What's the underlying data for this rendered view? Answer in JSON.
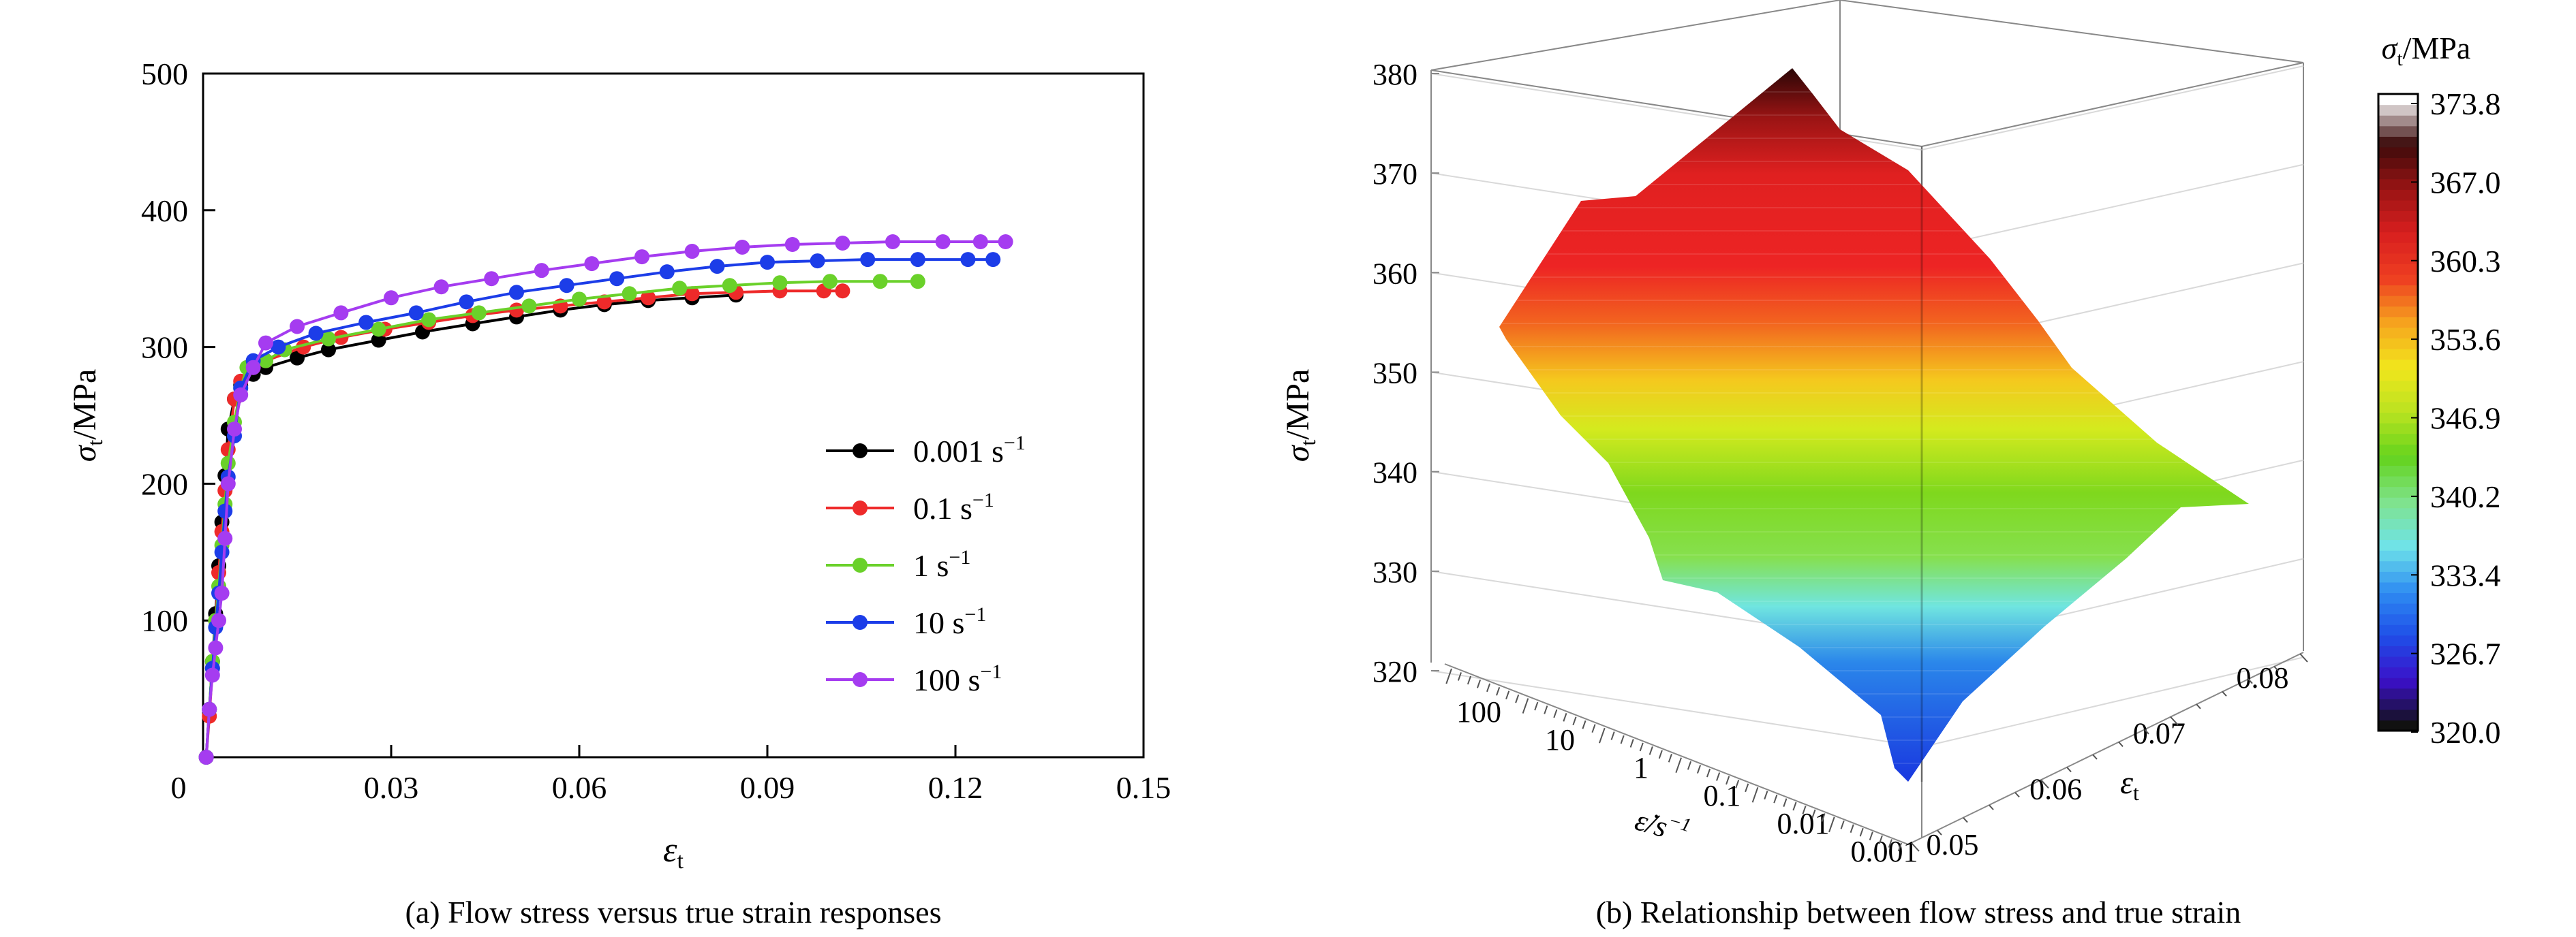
{
  "colors": {
    "series": [
      "#000000",
      "#ee2a2a",
      "#6ad12a",
      "#1c3de8",
      "#a53cf0"
    ]
  },
  "chart_data": [
    {
      "type": "line",
      "caption": "(a) Flow stress versus true strain responses",
      "xlabel_main": "ε",
      "xlabel_sub": "t",
      "ylabel_main": "σ",
      "ylabel_sub": "t",
      "ylabel_unit": "/MPa",
      "xlim": [
        0,
        0.15
      ],
      "ylim": [
        0,
        500
      ],
      "xticks": [
        {
          "v": 0,
          "label": "0"
        },
        {
          "v": 0.03,
          "label": "0.03"
        },
        {
          "v": 0.06,
          "label": "0.06"
        },
        {
          "v": 0.09,
          "label": "0.09"
        },
        {
          "v": 0.12,
          "label": "0.12"
        },
        {
          "v": 0.15,
          "label": "0.15"
        }
      ],
      "yticks": [
        {
          "v": 100,
          "label": "100"
        },
        {
          "v": 200,
          "label": "200"
        },
        {
          "v": 300,
          "label": "300"
        },
        {
          "v": 400,
          "label": "400"
        },
        {
          "v": 500,
          "label": "500"
        }
      ],
      "legend_position": "right",
      "series": [
        {
          "name": "0.001 s",
          "unit_sup": "−1",
          "x": [
            0.0005,
            0.001,
            0.0015,
            0.002,
            0.0025,
            0.003,
            0.0035,
            0.004,
            0.005,
            0.006,
            0.008,
            0.01,
            0.015,
            0.02,
            0.028,
            0.035,
            0.043,
            0.05,
            0.057,
            0.064,
            0.071,
            0.078,
            0.085
          ],
          "y": [
            0,
            35,
            70,
            105,
            140,
            172,
            206,
            240,
            262,
            272,
            280,
            285,
            292,
            298,
            305,
            311,
            317,
            322,
            327,
            331,
            334,
            336,
            338
          ]
        },
        {
          "name": "0.1 s",
          "unit_sup": "−1",
          "x": [
            0.0005,
            0.001,
            0.0015,
            0.002,
            0.0025,
            0.003,
            0.0035,
            0.004,
            0.005,
            0.006,
            0.008,
            0.01,
            0.016,
            0.022,
            0.029,
            0.036,
            0.043,
            0.05,
            0.057,
            0.064,
            0.071,
            0.078,
            0.085,
            0.092,
            0.099,
            0.102
          ],
          "y": [
            0,
            30,
            65,
            100,
            135,
            165,
            195,
            225,
            262,
            275,
            285,
            290,
            300,
            307,
            313,
            318,
            323,
            327,
            330,
            333,
            336,
            339,
            340,
            341,
            341,
            341
          ]
        },
        {
          "name": "1 s",
          "unit_sup": "−1",
          "x": [
            0.0005,
            0.001,
            0.0015,
            0.002,
            0.0025,
            0.003,
            0.0035,
            0.004,
            0.005,
            0.006,
            0.007,
            0.01,
            0.013,
            0.02,
            0.028,
            0.036,
            0.044,
            0.052,
            0.06,
            0.068,
            0.076,
            0.084,
            0.092,
            0.1,
            0.108,
            0.114
          ],
          "y": [
            0,
            35,
            70,
            100,
            125,
            155,
            185,
            215,
            245,
            270,
            285,
            290,
            298,
            306,
            313,
            320,
            325,
            330,
            335,
            339,
            343,
            345,
            347,
            348,
            348,
            348
          ]
        },
        {
          "name": "10 s",
          "unit_sup": "−1",
          "x": [
            0.0005,
            0.001,
            0.0015,
            0.002,
            0.0025,
            0.003,
            0.0035,
            0.004,
            0.005,
            0.006,
            0.008,
            0.012,
            0.018,
            0.026,
            0.034,
            0.042,
            0.05,
            0.058,
            0.066,
            0.074,
            0.082,
            0.09,
            0.098,
            0.106,
            0.114,
            0.122,
            0.126
          ],
          "y": [
            0,
            35,
            65,
            95,
            120,
            150,
            180,
            205,
            235,
            270,
            290,
            300,
            310,
            318,
            325,
            333,
            340,
            345,
            350,
            355,
            359,
            362,
            363,
            364,
            364,
            364,
            364
          ]
        },
        {
          "name": "100 s",
          "unit_sup": "−1",
          "x": [
            0.0005,
            0.001,
            0.0015,
            0.002,
            0.0025,
            0.003,
            0.0035,
            0.004,
            0.005,
            0.006,
            0.008,
            0.01,
            0.015,
            0.022,
            0.03,
            0.038,
            0.046,
            0.054,
            0.062,
            0.07,
            0.078,
            0.086,
            0.094,
            0.102,
            0.11,
            0.118,
            0.124,
            0.128
          ],
          "y": [
            0,
            35,
            60,
            80,
            100,
            120,
            160,
            200,
            240,
            265,
            285,
            303,
            315,
            325,
            336,
            344,
            350,
            356,
            361,
            366,
            370,
            373,
            375,
            376,
            377,
            377,
            377,
            377
          ]
        }
      ]
    },
    {
      "type": "surface",
      "caption": "(b) Relationship between flow stress and true strain",
      "zlabel_main": "σ",
      "zlabel_sub": "t",
      "zlabel_unit": "/MPa",
      "strain_rate_label": "ε̇/s",
      "strain_rate_sup": "−1",
      "strain_label_main": "ε",
      "strain_label_sub": "t",
      "zlim": [
        320,
        380
      ],
      "zticks": [
        "320",
        "330",
        "340",
        "350",
        "360",
        "370",
        "380"
      ],
      "strain_rate_ticks": [
        "100",
        "10",
        "1",
        "0.1",
        "0.01",
        "0.001"
      ],
      "strain_ticks": [
        "0.05",
        "0.06",
        "0.07",
        "0.08"
      ],
      "colorbar": {
        "title_main": "σ",
        "title_sub": "t",
        "title_unit": "/MPa",
        "range": [
          320.0,
          373.8
        ],
        "ticks": [
          "373.8",
          "367.0",
          "360.3",
          "353.6",
          "346.9",
          "340.2",
          "333.4",
          "326.7",
          "320.0"
        ],
        "colormap": [
          "#111111",
          "#3b10c8",
          "#1f4ee8",
          "#2e8df2",
          "#6fe3e9",
          "#7fe38c",
          "#64d31d",
          "#b9e320",
          "#f1e61c",
          "#f6a41e",
          "#ee3e21",
          "#d81f1f",
          "#9a1414",
          "#3b0a0a",
          "#ffffff"
        ]
      },
      "corners": [
        {
          "strain_rate": "100",
          "strain": "0.05",
          "stress": 354.6
        },
        {
          "strain_rate": "100",
          "strain": "0.08",
          "stress": 380.0
        },
        {
          "strain_rate": "0.001",
          "strain": "0.05",
          "stress": 320.0
        },
        {
          "strain_rate": "0.001",
          "strain": "0.08",
          "stress": 338.0
        }
      ]
    }
  ]
}
